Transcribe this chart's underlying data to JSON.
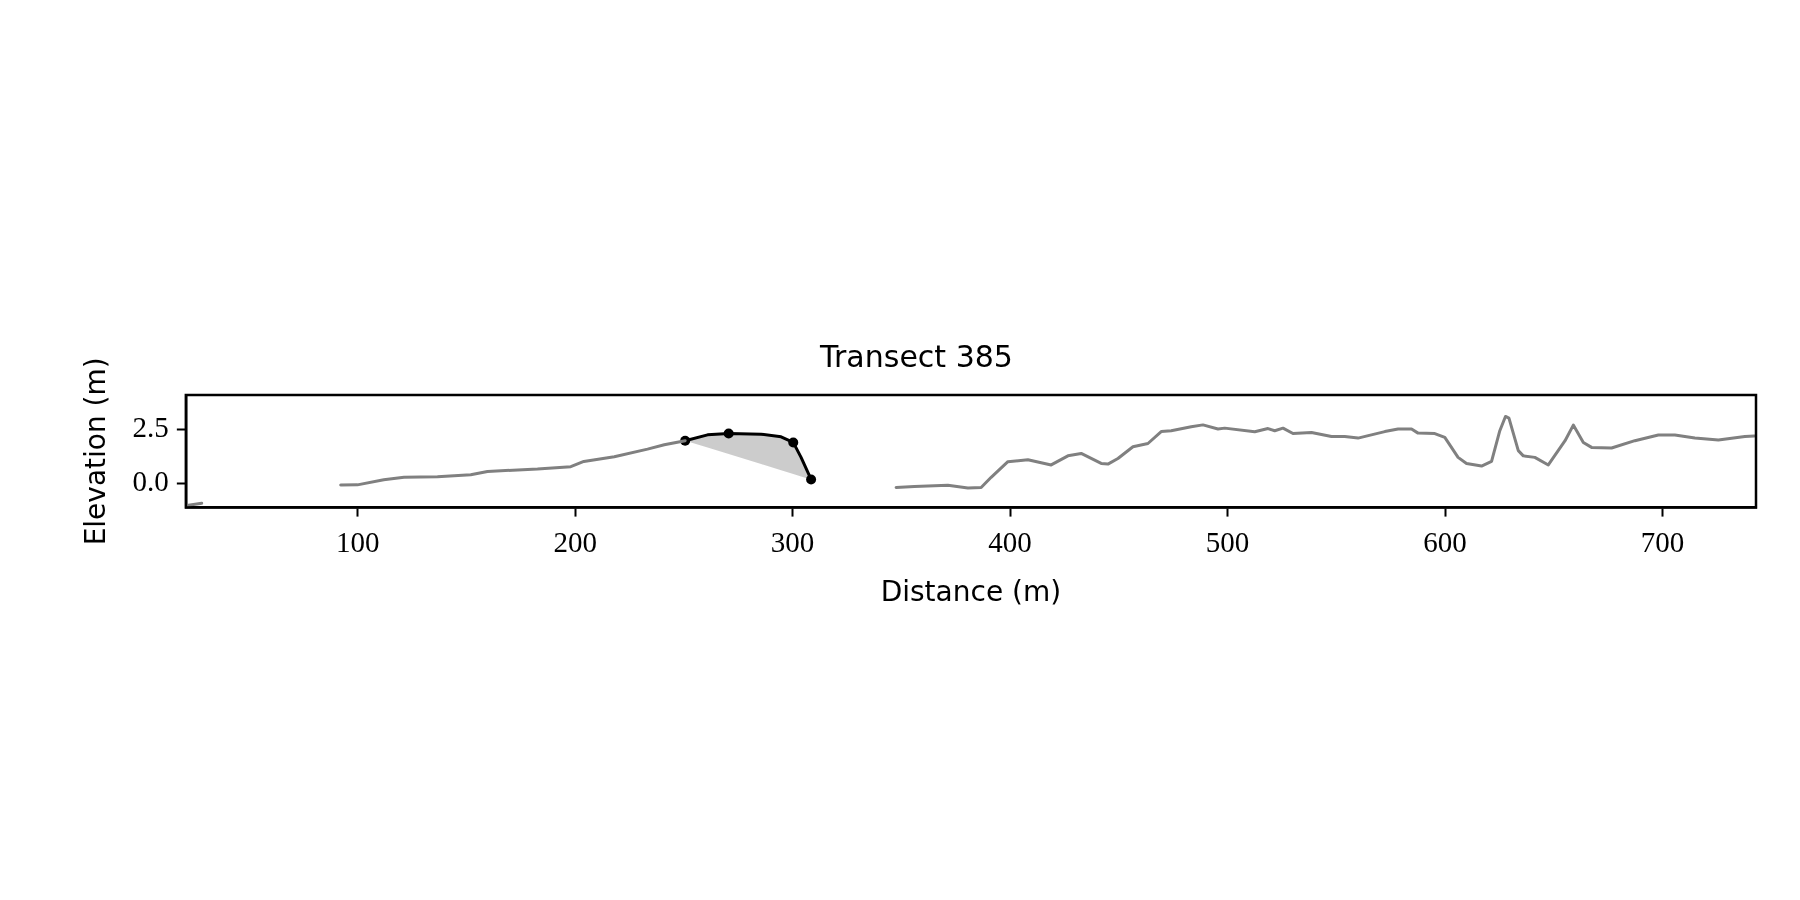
{
  "chart_data": {
    "type": "line",
    "title": "Transect 385",
    "xlabel": "Distance (m)",
    "ylabel": "Elevation (m)",
    "xlim": [
      21,
      743
    ],
    "ylim": [
      -1.1,
      4.1
    ],
    "xticks": [
      100,
      200,
      300,
      400,
      500,
      600,
      700
    ],
    "yticks": [
      {
        "value": 0,
        "label": "0.0"
      },
      {
        "value": 2.5,
        "label": "2.5"
      }
    ],
    "grid": false,
    "legend": false,
    "marker": "none",
    "series": [
      {
        "type": "line",
        "color": "#808080",
        "x": [
          21.4,
          28.3
        ],
        "values": [
          -1.0,
          -0.9
        ]
      },
      {
        "type": "line",
        "color": "#808080",
        "x": [
          92.2,
          99.9,
          112,
          121.3,
          136.7,
          152,
          159.7,
          182.7,
          198,
          204,
          218,
          233.3,
          241,
          250.6
        ],
        "values": [
          -0.06,
          -0.05,
          0.19,
          0.3,
          0.33,
          0.42,
          0.57,
          0.68,
          0.79,
          1.03,
          1.25,
          1.6,
          1.8,
          1.99
        ]
      },
      {
        "type": "line",
        "color": "#000000",
        "x": [
          250.6,
          260.9,
          270.6,
          285.5,
          294.7,
          300.3,
          303.9,
          308.5
        ],
        "values": [
          1.99,
          2.26,
          2.32,
          2.29,
          2.17,
          1.91,
          1.22,
          0.2
        ],
        "lower": [
          1.99,
          1.67,
          1.37,
          0.91,
          0.63,
          0.45,
          0.34,
          0.2
        ],
        "upper": [
          1.99,
          2.26,
          2.32,
          2.29,
          2.17,
          1.91,
          1.22,
          0.2
        ]
      },
      {
        "type": "scatter",
        "color": "#000000",
        "marker": "circle",
        "x": [
          250.6,
          270.6,
          300.3,
          308.5
        ],
        "values": [
          1.99,
          2.32,
          1.91,
          0.2
        ]
      },
      {
        "type": "line",
        "color": "#808080",
        "x": [
          347.6,
          356,
          371.4,
          380.6,
          386.7,
          391.3,
          399,
          408.2,
          418.9,
          426.6,
          432.7,
          441.9,
          445,
          449.6,
          456.5,
          463.4,
          469.5,
          474.1,
          483.3,
          488.7,
          495.6,
          498.7,
          512.5,
          518.6,
          521.7,
          525.5,
          530.1,
          538.6,
          547.8,
          553.9,
          560,
          572.3,
          578.4,
          584.6,
          587.6,
          595.3,
          599.9,
          606,
          609.9,
          616.8,
          621.4,
          625.2,
          627.8,
          629.4,
          633.7,
          636,
          641.3,
          647.5,
          655.2,
          659,
          663.6,
          667.4,
          676.6,
          687.3,
          698.1,
          705.7,
          714.9,
          725.7,
          737.9,
          742.3
        ],
        "values": [
          -0.17,
          -0.13,
          -0.07,
          -0.19,
          -0.17,
          0.3,
          1.02,
          1.11,
          0.87,
          1.29,
          1.4,
          0.94,
          0.91,
          1.17,
          1.71,
          1.86,
          2.41,
          2.45,
          2.63,
          2.72,
          2.53,
          2.57,
          2.4,
          2.55,
          2.45,
          2.57,
          2.32,
          2.37,
          2.18,
          2.18,
          2.11,
          2.41,
          2.53,
          2.53,
          2.34,
          2.32,
          2.14,
          1.22,
          0.94,
          0.82,
          1.03,
          2.45,
          3.11,
          3.03,
          1.53,
          1.29,
          1.22,
          0.87,
          1.99,
          2.71,
          1.91,
          1.68,
          1.65,
          1.99,
          2.25,
          2.25,
          2.11,
          2.02,
          2.18,
          2.21
        ]
      }
    ]
  }
}
